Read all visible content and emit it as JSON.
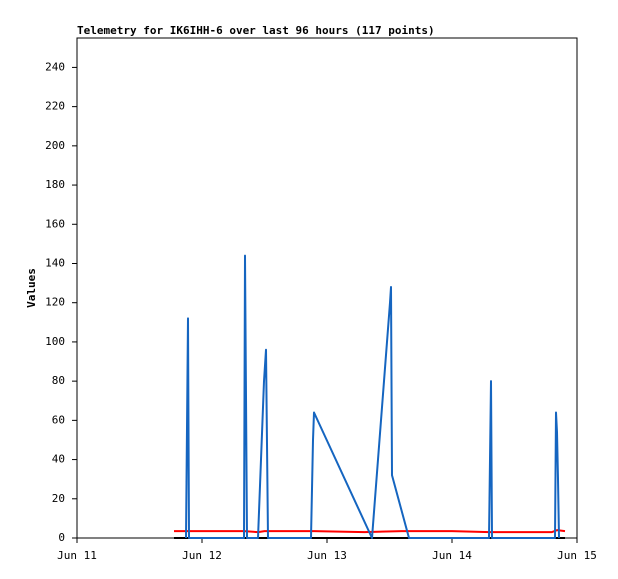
{
  "chart_data": {
    "type": "line",
    "title": "Telemetry for IK6IHH-6 over last 96 hours (117 points)",
    "y_label": "Values",
    "xlim": [
      11,
      15
    ],
    "xticks": [
      {
        "value": 11,
        "label": "Jun 11"
      },
      {
        "value": 12,
        "label": "Jun 12"
      },
      {
        "value": 13,
        "label": "Jun 13"
      },
      {
        "value": 14,
        "label": "Jun 14"
      },
      {
        "value": 15,
        "label": "Jun 15"
      }
    ],
    "ylim": [
      0,
      255
    ],
    "yticks": [
      0,
      20,
      40,
      60,
      80,
      100,
      120,
      140,
      160,
      180,
      200,
      220,
      240
    ],
    "series": [
      {
        "color": "#000000",
        "x": [
          11.776,
          12.5,
          13.3,
          14.1,
          14.904
        ],
        "values": [
          0,
          0,
          0,
          0,
          0
        ]
      },
      {
        "color": "#ff0000",
        "x": [
          11.776,
          12.336,
          12.448,
          12.5,
          12.896,
          13.3,
          13.6,
          14.0,
          14.3,
          14.8,
          14.84,
          14.904
        ],
        "values": [
          3.5,
          3.5,
          3,
          3.5,
          3.5,
          3,
          3.5,
          3.5,
          3,
          3,
          4,
          3.5
        ]
      },
      {
        "color": "#1565c0",
        "x": [
          11.872,
          11.88,
          11.888,
          11.896,
          12.336,
          12.344,
          12.352,
          12.36,
          12.448,
          12.496,
          12.512,
          12.52,
          12.528,
          12.872,
          12.888,
          12.896,
          13.36,
          13.408,
          13.504,
          13.512,
          13.52,
          13.656,
          14.296,
          14.304,
          14.312,
          14.32,
          14.824,
          14.832,
          14.84,
          14.848,
          14.856
        ],
        "values": [
          0,
          56,
          112,
          0,
          0,
          144,
          72,
          0,
          0,
          80,
          96,
          48,
          0,
          0,
          50,
          64,
          0,
          40,
          120,
          128,
          32,
          0,
          0,
          40,
          80,
          0,
          0,
          64,
          54,
          30,
          0
        ]
      }
    ]
  }
}
